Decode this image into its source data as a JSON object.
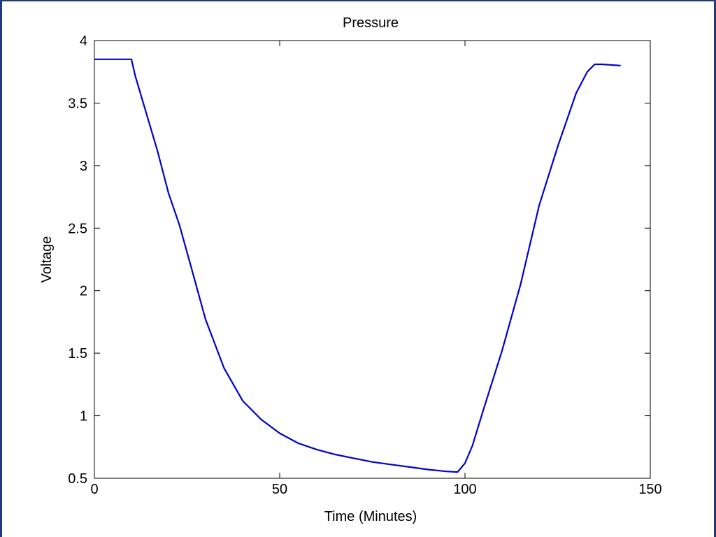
{
  "window": {
    "frame_color": "#1f3c78"
  },
  "chart_data": {
    "type": "line",
    "title": "Pressure",
    "xlabel": "Time (Minutes)",
    "ylabel": "Voltage",
    "xlim": [
      0,
      150
    ],
    "ylim": [
      0.5,
      4
    ],
    "xticks": [
      0,
      50,
      100,
      150
    ],
    "xtick_labels": [
      "0",
      "50",
      "100",
      "150"
    ],
    "yticks": [
      0.5,
      1,
      1.5,
      2,
      2.5,
      3,
      3.5,
      4
    ],
    "ytick_labels": [
      "0.5",
      "1",
      "1.5",
      "2",
      "2.5",
      "3",
      "3.5",
      "4"
    ],
    "grid": false,
    "legend": "none",
    "line_color": "#0000cc",
    "series": [
      {
        "x": [
          0,
          5,
          10,
          11,
          13,
          15,
          17,
          20,
          23,
          26,
          30,
          35,
          40,
          45,
          50,
          55,
          60,
          65,
          70,
          75,
          80,
          85,
          90,
          95,
          98,
          100,
          102,
          105,
          110,
          115,
          120,
          125,
          130,
          133,
          135,
          137,
          142
        ],
        "y": [
          3.85,
          3.85,
          3.85,
          3.72,
          3.52,
          3.32,
          3.12,
          2.78,
          2.52,
          2.2,
          1.77,
          1.38,
          1.12,
          0.97,
          0.86,
          0.78,
          0.73,
          0.69,
          0.66,
          0.63,
          0.61,
          0.59,
          0.57,
          0.555,
          0.55,
          0.62,
          0.76,
          1.05,
          1.52,
          2.05,
          2.68,
          3.15,
          3.58,
          3.75,
          3.81,
          3.81,
          3.8
        ]
      }
    ]
  }
}
